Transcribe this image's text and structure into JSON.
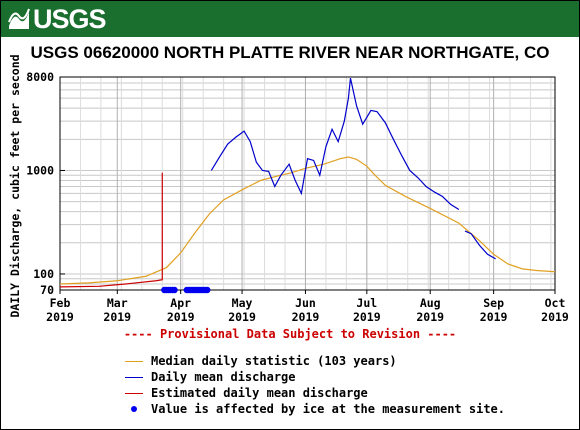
{
  "header": {
    "logo_text": "USGS",
    "brand_color": "#1a6e2e"
  },
  "chart_data": {
    "type": "line",
    "title": "USGS 06620000 NORTH PLATTE RIVER NEAR NORTHGATE, CO",
    "ylabel": "DAILY Discharge, cubic feet per second",
    "xlabel": "",
    "yscale": "log",
    "ylim": [
      70,
      8000
    ],
    "yticks": [
      70,
      100,
      1000,
      8000
    ],
    "xlim": [
      "2019-02-01",
      "2019-10-01"
    ],
    "xticks": [
      {
        "date": "2019-02-01",
        "month": "Feb",
        "year": "2019"
      },
      {
        "date": "2019-03-01",
        "month": "Mar",
        "year": "2019"
      },
      {
        "date": "2019-04-01",
        "month": "Apr",
        "year": "2019"
      },
      {
        "date": "2019-05-01",
        "month": "May",
        "year": "2019"
      },
      {
        "date": "2019-06-01",
        "month": "Jun",
        "year": "2019"
      },
      {
        "date": "2019-07-01",
        "month": "Jul",
        "year": "2019"
      },
      {
        "date": "2019-08-01",
        "month": "Aug",
        "year": "2019"
      },
      {
        "date": "2019-09-01",
        "month": "Sep",
        "year": "2019"
      },
      {
        "date": "2019-10-01",
        "month": "Oct",
        "year": "2019"
      }
    ],
    "grid": true,
    "series": [
      {
        "name": "Median daily statistic (103 years)",
        "color": "#e0a020",
        "points": [
          [
            "2019-02-01",
            80
          ],
          [
            "2019-02-15",
            82
          ],
          [
            "2019-03-01",
            86
          ],
          [
            "2019-03-15",
            95
          ],
          [
            "2019-03-25",
            115
          ],
          [
            "2019-04-01",
            160
          ],
          [
            "2019-04-08",
            250
          ],
          [
            "2019-04-15",
            380
          ],
          [
            "2019-04-22",
            520
          ],
          [
            "2019-05-01",
            650
          ],
          [
            "2019-05-10",
            800
          ],
          [
            "2019-05-18",
            880
          ],
          [
            "2019-05-25",
            950
          ],
          [
            "2019-06-01",
            1050
          ],
          [
            "2019-06-10",
            1150
          ],
          [
            "2019-06-18",
            1300
          ],
          [
            "2019-06-22",
            1350
          ],
          [
            "2019-06-26",
            1280
          ],
          [
            "2019-07-01",
            1100
          ],
          [
            "2019-07-05",
            900
          ],
          [
            "2019-07-10",
            720
          ],
          [
            "2019-07-20",
            560
          ],
          [
            "2019-08-01",
            430
          ],
          [
            "2019-08-15",
            310
          ],
          [
            "2019-08-25",
            210
          ],
          [
            "2019-09-01",
            155
          ],
          [
            "2019-09-08",
            125
          ],
          [
            "2019-09-15",
            112
          ],
          [
            "2019-09-22",
            108
          ],
          [
            "2019-10-01",
            105
          ]
        ]
      },
      {
        "name": "Daily mean discharge",
        "color": "#0000cc",
        "segments": [
          [
            [
              "2019-04-16",
              1000
            ],
            [
              "2019-04-20",
              1350
            ],
            [
              "2019-04-24",
              1800
            ],
            [
              "2019-04-28",
              2100
            ],
            [
              "2019-05-02",
              2400
            ],
            [
              "2019-05-05",
              1900
            ],
            [
              "2019-05-08",
              1200
            ],
            [
              "2019-05-11",
              1000
            ],
            [
              "2019-05-14",
              980
            ],
            [
              "2019-05-17",
              700
            ],
            [
              "2019-05-20",
              900
            ],
            [
              "2019-05-24",
              1150
            ],
            [
              "2019-05-27",
              800
            ],
            [
              "2019-05-30",
              600
            ],
            [
              "2019-06-02",
              1300
            ],
            [
              "2019-06-05",
              1250
            ],
            [
              "2019-06-08",
              900
            ],
            [
              "2019-06-11",
              1700
            ],
            [
              "2019-06-14",
              2500
            ],
            [
              "2019-06-17",
              1900
            ],
            [
              "2019-06-20",
              3000
            ],
            [
              "2019-06-22",
              5000
            ],
            [
              "2019-06-23",
              7800
            ],
            [
              "2019-06-26",
              4200
            ],
            [
              "2019-06-29",
              2800
            ],
            [
              "2019-07-03",
              3800
            ],
            [
              "2019-07-06",
              3700
            ],
            [
              "2019-07-10",
              2900
            ],
            [
              "2019-07-14",
              2000
            ],
            [
              "2019-07-18",
              1400
            ],
            [
              "2019-07-22",
              1000
            ],
            [
              "2019-07-26",
              850
            ],
            [
              "2019-07-30",
              700
            ],
            [
              "2019-08-03",
              620
            ],
            [
              "2019-08-07",
              560
            ],
            [
              "2019-08-11",
              470
            ],
            [
              "2019-08-15",
              420
            ]
          ],
          [
            [
              "2019-08-18",
              260
            ],
            [
              "2019-08-21",
              245
            ],
            [
              "2019-08-25",
              190
            ],
            [
              "2019-08-29",
              155
            ],
            [
              "2019-09-02",
              140
            ]
          ]
        ]
      },
      {
        "name": "Estimated daily mean discharge",
        "color": "#cc0000",
        "points": [
          [
            "2019-02-01",
            75
          ],
          [
            "2019-02-20",
            76
          ],
          [
            "2019-03-05",
            80
          ],
          [
            "2019-03-20",
            86
          ],
          [
            "2019-03-23",
            88
          ],
          [
            "2019-03-23",
            950
          ]
        ]
      }
    ],
    "ice_affected": {
      "name": "Value is affected by ice at the measurement site.",
      "color": "#0000ee",
      "value": 70,
      "dates": [
        "2019-03-24",
        "2019-03-25",
        "2019-03-26",
        "2019-03-27",
        "2019-03-28",
        "2019-03-29",
        "2019-04-04",
        "2019-04-05",
        "2019-04-06",
        "2019-04-07",
        "2019-04-08",
        "2019-04-09",
        "2019-04-10",
        "2019-04-11",
        "2019-04-12",
        "2019-04-13",
        "2019-04-14"
      ]
    },
    "legend_placement": "bottom"
  },
  "notice": "---- Provisional Data Subject to Revision ----"
}
